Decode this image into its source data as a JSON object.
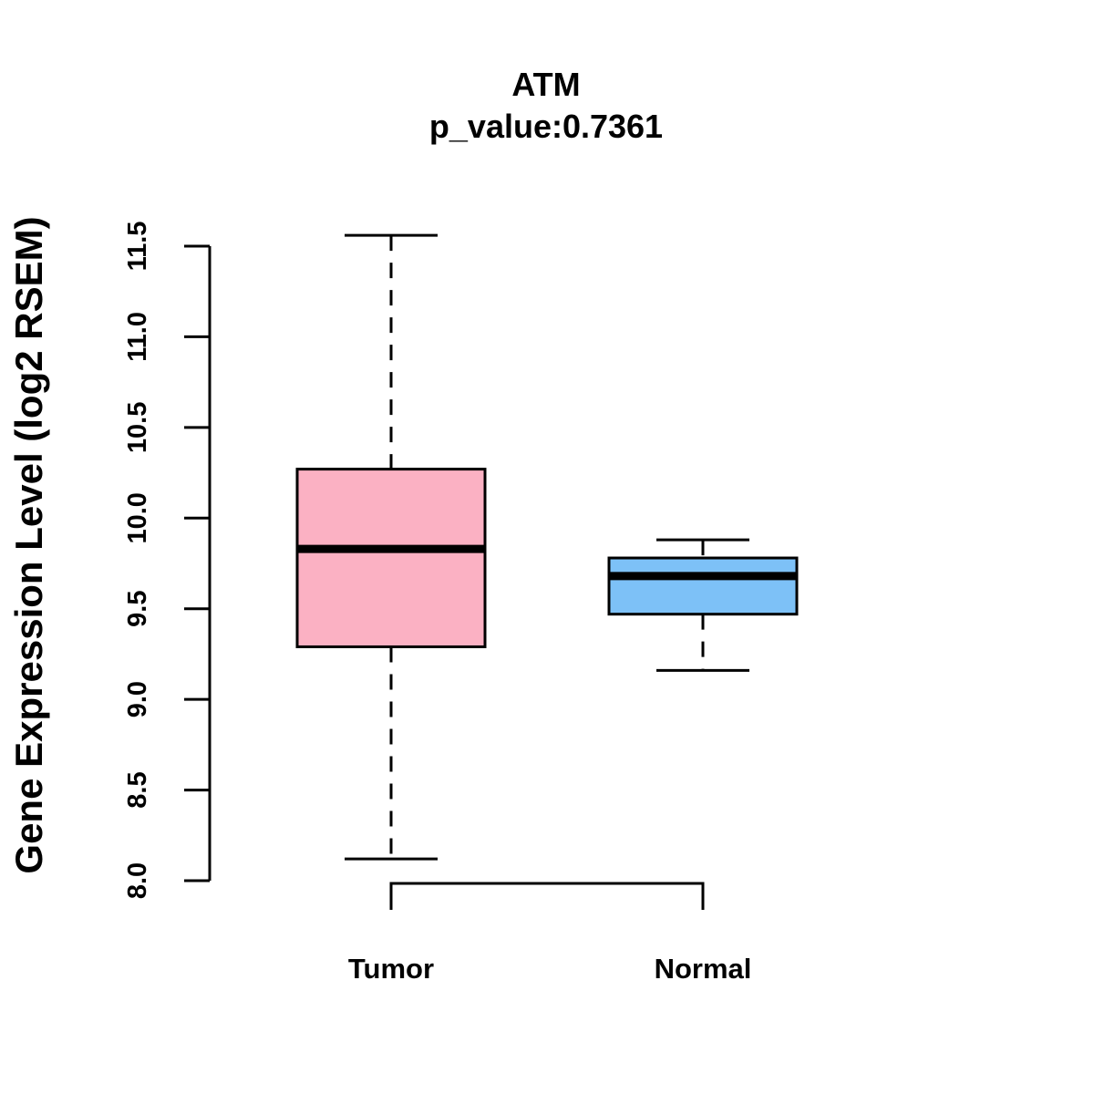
{
  "chart_data": {
    "type": "box",
    "title": "ATM",
    "subtitle": "p_value:0.7361",
    "xlabel": "",
    "ylabel": "Gene Expression Level (log2 RSEM)",
    "ylim": [
      8.0,
      11.5
    ],
    "yticks": [
      8.0,
      8.5,
      9.0,
      9.5,
      10.0,
      10.5,
      11.0,
      11.5
    ],
    "ytick_labels": [
      "8.0",
      "8.5",
      "9.0",
      "9.5",
      "10.0",
      "10.5",
      "11.0",
      "11.5"
    ],
    "categories": [
      "Tumor",
      "Normal"
    ],
    "series": [
      {
        "name": "Tumor",
        "color": "#FBB1C3",
        "whisker_style": "dashed",
        "min": 8.12,
        "q1": 9.29,
        "median": 9.83,
        "q3": 10.27,
        "max": 11.56
      },
      {
        "name": "Normal",
        "color": "#7DC1F7",
        "whisker_style": "dashed",
        "min": 9.16,
        "q1": 9.47,
        "median": 9.68,
        "q3": 9.78,
        "max": 9.88
      }
    ],
    "comparison_bracket": [
      "Tumor",
      "Normal"
    ]
  }
}
